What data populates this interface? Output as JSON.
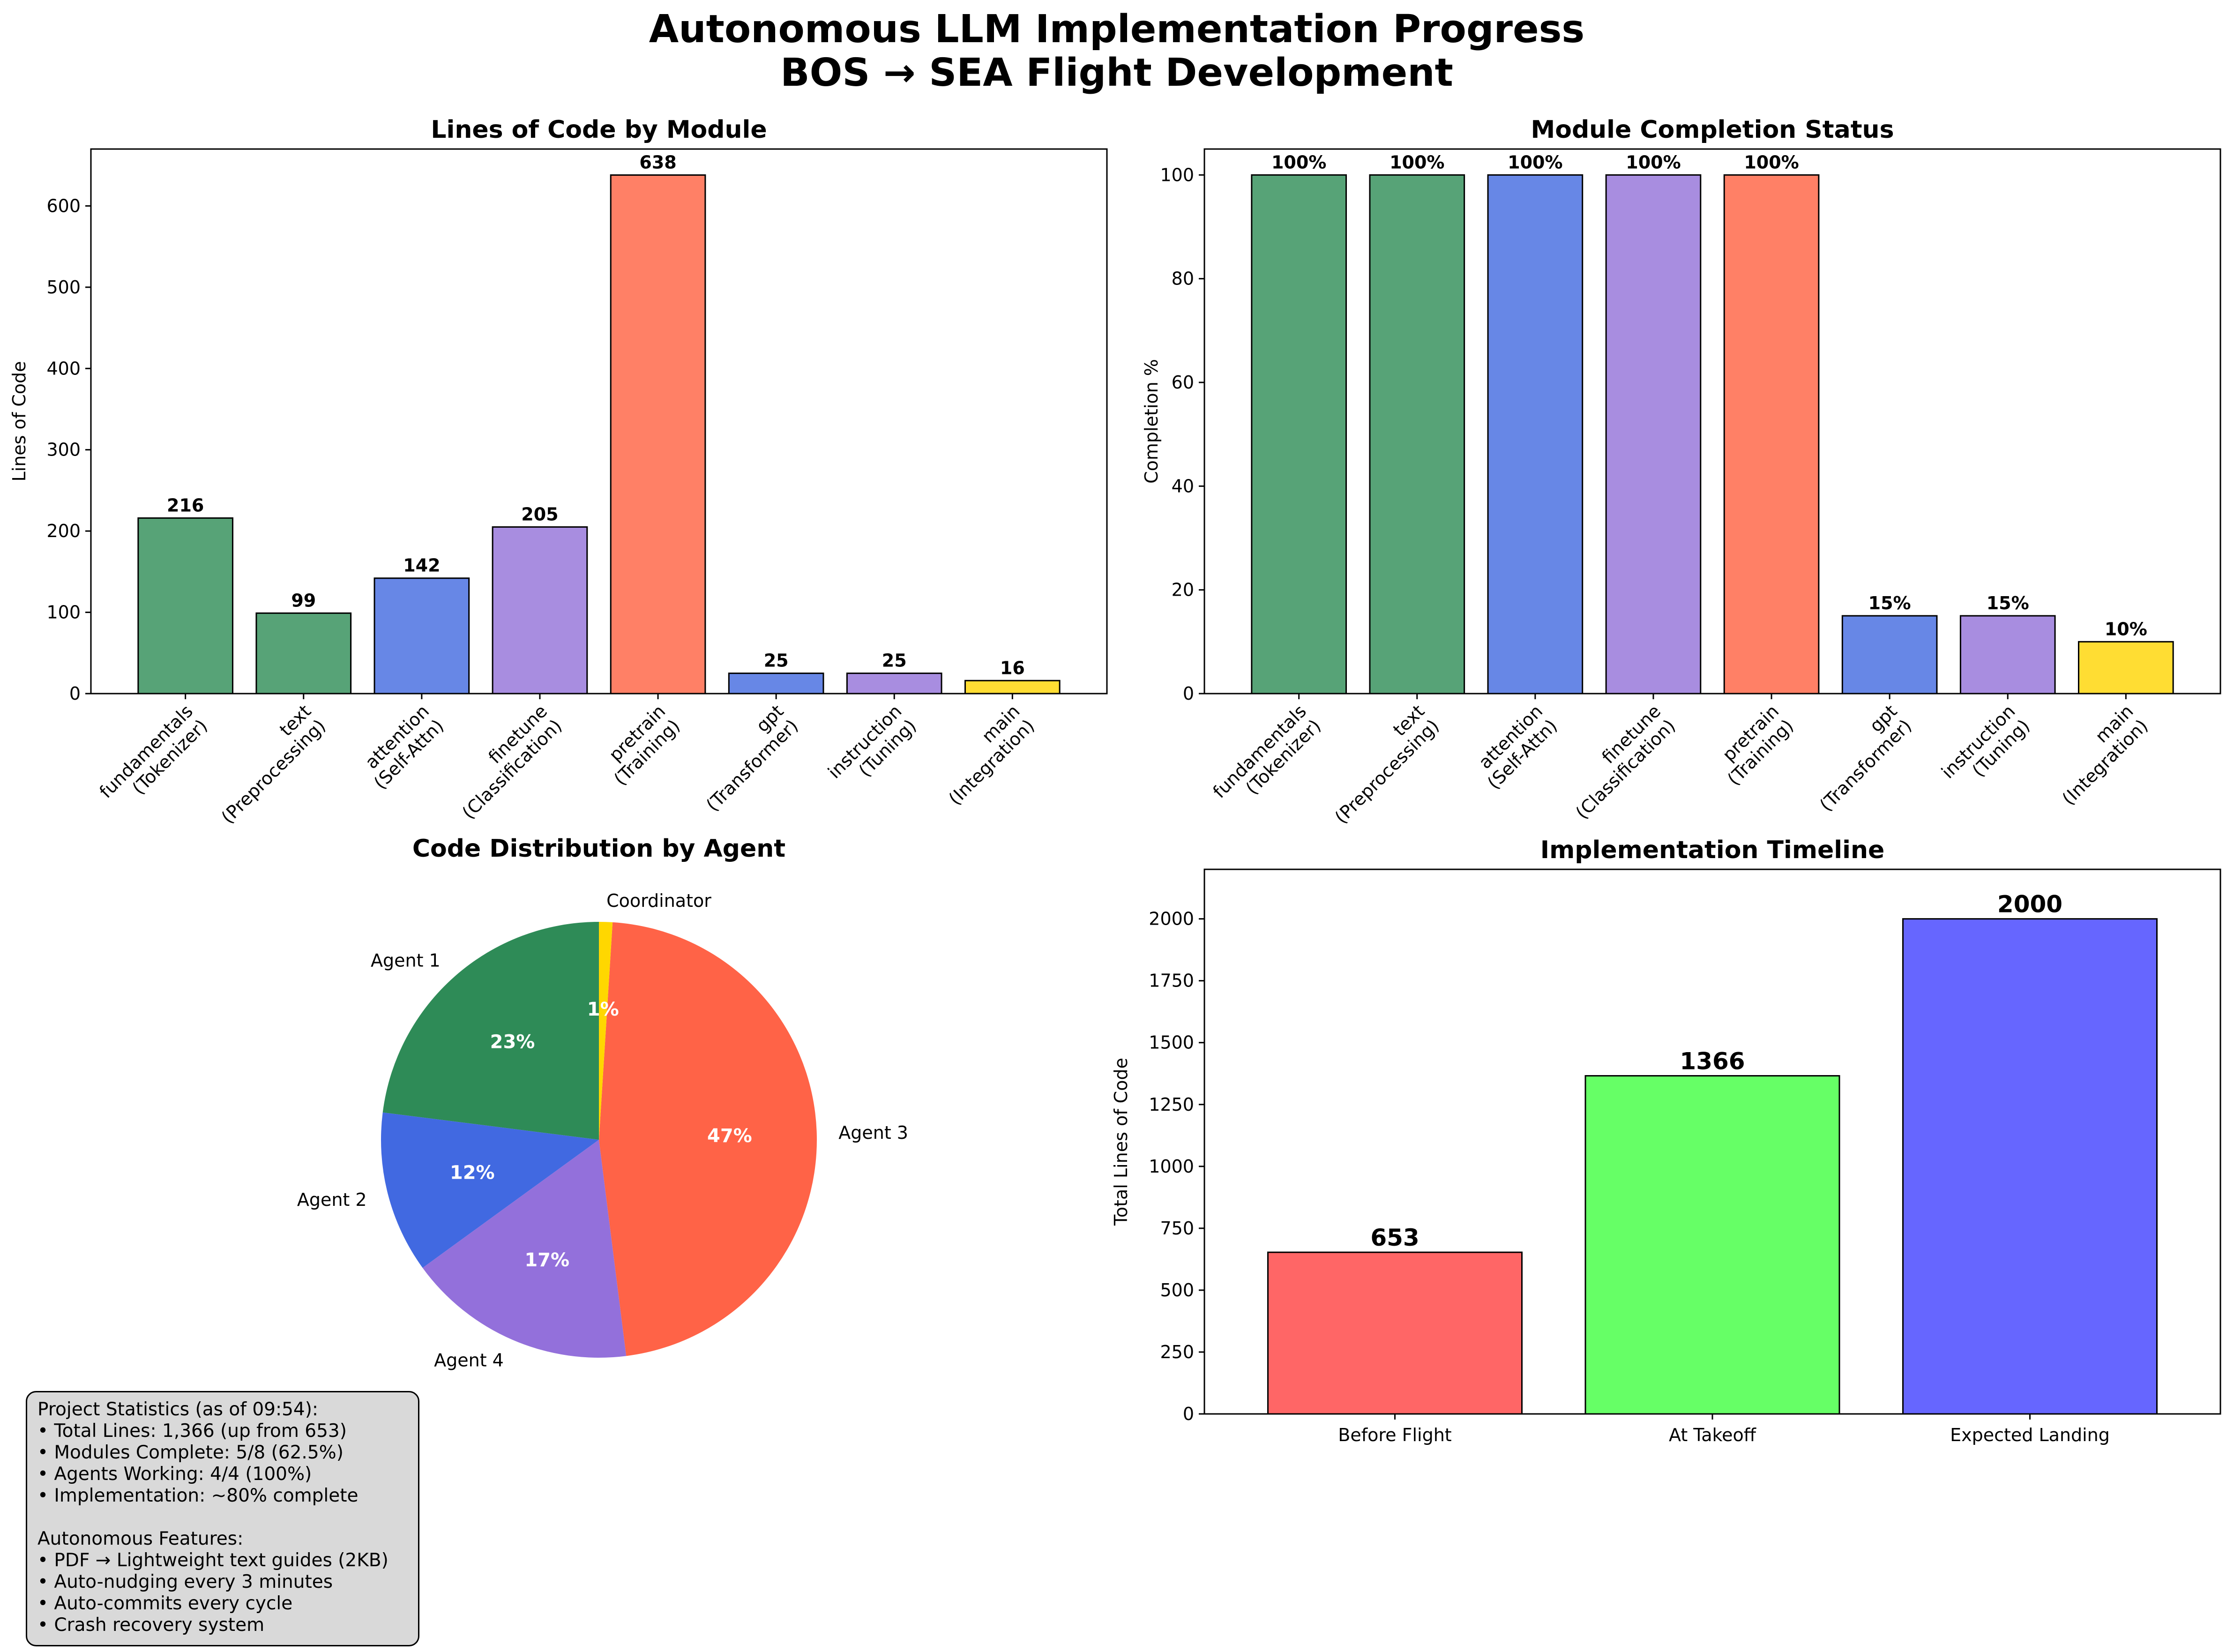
{
  "figure": {
    "title_line1": "Autonomous LLM Implementation Progress",
    "title_line2": "BOS → SEA Flight Development"
  },
  "colors": {
    "green": "#57a377",
    "blue": "#6787e6",
    "purple": "#a88de0",
    "red": "#ff8066",
    "yellow": "#ffdd33",
    "pie_green": "#2e8b57",
    "pie_blue": "#4169e1",
    "pie_purple": "#9370db",
    "pie_red": "#ff6347",
    "pie_yellow": "#ffd700",
    "tl_red": "#ff6666",
    "tl_green": "#66ff66",
    "tl_blue": "#6666ff"
  },
  "chart_data": [
    {
      "type": "bar",
      "title": "Lines of Code by Module",
      "xlabel": "",
      "ylabel": "Lines of Code",
      "categories": [
        "fundamentals\n(Tokenizer)",
        "text\n(Preprocessing)",
        "attention\n(Self-Attn)",
        "finetune\n(Classification)",
        "pretrain\n(Training)",
        "gpt\n(Transformer)",
        "instruction\n(Tuning)",
        "main\n(Integration)"
      ],
      "values": [
        216,
        99,
        142,
        205,
        638,
        25,
        25,
        16
      ],
      "value_labels": [
        "216",
        "99",
        "142",
        "205",
        "638",
        "25",
        "25",
        "16"
      ],
      "bar_colors": [
        "green",
        "green",
        "blue",
        "purple",
        "red",
        "blue",
        "purple",
        "yellow"
      ],
      "ylim": [
        0,
        670
      ],
      "yticks": [
        0,
        100,
        200,
        300,
        400,
        500,
        600
      ],
      "grid": false
    },
    {
      "type": "bar",
      "title": "Module Completion Status",
      "xlabel": "",
      "ylabel": "Completion %",
      "categories": [
        "fundamentals\n(Tokenizer)",
        "text\n(Preprocessing)",
        "attention\n(Self-Attn)",
        "finetune\n(Classification)",
        "pretrain\n(Training)",
        "gpt\n(Transformer)",
        "instruction\n(Tuning)",
        "main\n(Integration)"
      ],
      "values": [
        100,
        100,
        100,
        100,
        100,
        15,
        15,
        10
      ],
      "value_labels": [
        "100%",
        "100%",
        "100%",
        "100%",
        "100%",
        "15%",
        "15%",
        "10%"
      ],
      "bar_colors": [
        "green",
        "green",
        "blue",
        "purple",
        "red",
        "blue",
        "purple",
        "yellow"
      ],
      "ylim": [
        0,
        105
      ],
      "yticks": [
        0,
        20,
        40,
        60,
        80,
        100
      ],
      "grid": false
    },
    {
      "type": "pie",
      "title": "Code Distribution by Agent",
      "categories": [
        "Agent 1",
        "Agent 2",
        "Agent 4",
        "Agent 3",
        "Coordinator"
      ],
      "values": [
        23,
        12,
        17,
        47,
        1
      ],
      "value_labels": [
        "23%",
        "12%",
        "17%",
        "47%",
        "1%"
      ],
      "slice_colors": [
        "pie_green",
        "pie_blue",
        "pie_purple",
        "pie_red",
        "pie_yellow"
      ]
    },
    {
      "type": "bar",
      "title": "Implementation Timeline",
      "xlabel": "",
      "ylabel": "Total Lines of Code",
      "categories": [
        "Before Flight",
        "At Takeoff",
        "Expected Landing"
      ],
      "values": [
        653,
        1366,
        2000
      ],
      "value_labels": [
        "653",
        "1366",
        "2000"
      ],
      "bar_colors": [
        "tl_red",
        "tl_green",
        "tl_blue"
      ],
      "ylim": [
        0,
        2200
      ],
      "yticks": [
        0,
        250,
        500,
        750,
        1000,
        1250,
        1500,
        1750,
        2000
      ],
      "grid": false
    }
  ],
  "stats": {
    "lines": [
      "Project Statistics (as of 09:54):",
      "• Total Lines: 1,366 (up from 653)",
      "• Modules Complete: 5/8 (62.5%)",
      "• Agents Working: 4/4 (100%)",
      "• Implementation: ~80% complete",
      "",
      "Autonomous Features:",
      "• PDF → Lightweight text guides (2KB)",
      "• Auto-nudging every 3 minutes",
      "• Auto-commits every cycle",
      "• Crash recovery system"
    ]
  }
}
